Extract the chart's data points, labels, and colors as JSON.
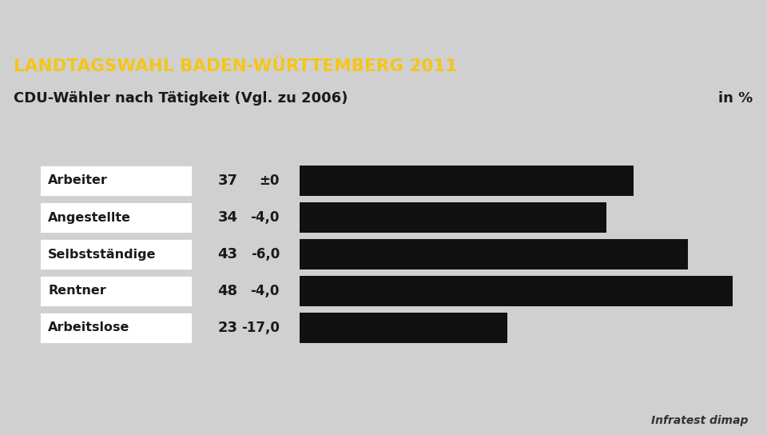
{
  "title": "LANDTAGSWAHL BADEN-WÜRTTEMBERG 2011",
  "subtitle": "CDU-Wähler nach Tätigkeit (Vgl. zu 2006)",
  "subtitle_right": "in %",
  "source": "Infratest dimap",
  "categories": [
    "Arbeiter",
    "Angestellte",
    "Selbstständige",
    "Rentner",
    "Arbeitslose"
  ],
  "values": [
    37,
    34,
    43,
    48,
    23
  ],
  "changes": [
    "±0",
    "-4,0",
    "-6,0",
    "-4,0",
    "-17,0"
  ],
  "bar_color": "#111111",
  "background_color": "#d0d0d0",
  "header_bg_color": "#1b3a6e",
  "header_text_color": "#f5c518",
  "subheader_bg_color": "#ffffff",
  "subheader_text_color": "#1a1a1a",
  "label_box_bg": "#ffffff",
  "label_box_border": "#cccccc",
  "max_bar_value": 48,
  "bar_scale": 50
}
